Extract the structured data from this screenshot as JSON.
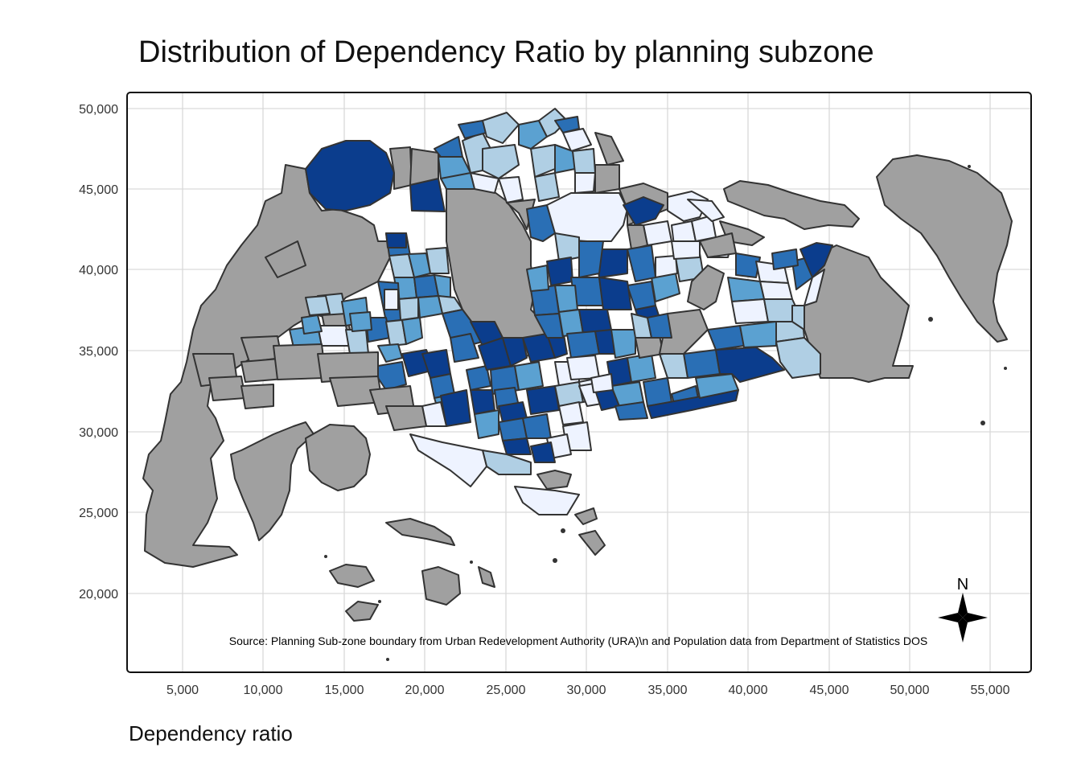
{
  "title": "Distribution of Dependency Ratio by planning subzone",
  "legend_title": "Dependency ratio",
  "source_note": "Source: Planning Sub-zone boundary from Urban Redevelopment Authority (URA)\\n and Population data from Department of Statistics DOS",
  "compass_label": "N",
  "axes": {
    "x_ticks": [
      "5,000",
      "10,000",
      "15,000",
      "20,000",
      "25,000",
      "30,000",
      "35,000",
      "40,000",
      "45,000",
      "50,000",
      "55,000"
    ],
    "y_ticks": [
      "50,000",
      "45,000",
      "40,000",
      "35,000",
      "30,000",
      "25,000",
      "20,000"
    ],
    "grid": true
  },
  "palette": {
    "missing": "#a0a0a0",
    "class_1": "#eef3ff",
    "class_2": "#b0cfe4",
    "class_3": "#5ba1d1",
    "class_4": "#2a6fb5",
    "class_5": "#0b3d8d",
    "border": "#333333"
  },
  "chart_data": {
    "type": "choropleth",
    "variable": "Dependency ratio"
  }
}
